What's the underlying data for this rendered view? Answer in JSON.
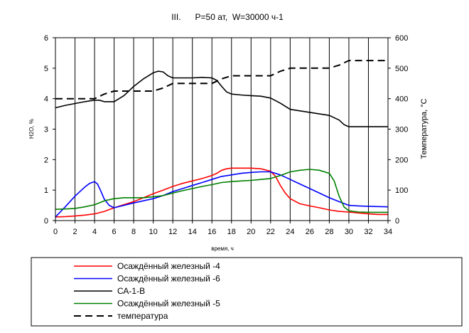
{
  "chart_data": {
    "type": "line",
    "title": "III.      P=50 ат,  W=30000 ч-1",
    "xlabel": "время, ч",
    "ylabel_left": "Н2О, %",
    "ylabel_right": "Температура, °С",
    "xlim": [
      0,
      34
    ],
    "xticks": [
      0,
      2,
      4,
      6,
      8,
      10,
      12,
      14,
      16,
      18,
      20,
      22,
      24,
      26,
      28,
      30,
      32,
      34
    ],
    "ylim_left": [
      0,
      6
    ],
    "yticks_left": [
      0,
      1,
      2,
      3,
      4,
      5,
      6
    ],
    "ylim_right": [
      0,
      600
    ],
    "yticks_right": [
      0,
      100,
      200,
      300,
      400,
      500,
      600
    ],
    "grid": "vertical",
    "legend_position": "bottom",
    "series": [
      {
        "name": "Осаждённый железный -4",
        "color": "#ff0000",
        "axis": "left",
        "dash": "solid",
        "x": [
          0,
          1,
          2,
          3,
          4,
          5,
          6,
          7,
          8,
          9,
          10,
          11,
          12,
          13,
          14,
          15,
          16,
          16.5,
          17,
          17.5,
          18,
          19,
          20,
          21,
          22,
          22.5,
          23,
          23.5,
          24,
          25,
          26,
          27,
          28,
          29,
          30,
          31,
          32,
          33,
          34
        ],
        "y": [
          0.12,
          0.13,
          0.15,
          0.18,
          0.22,
          0.3,
          0.42,
          0.52,
          0.62,
          0.75,
          0.88,
          1.0,
          1.12,
          1.22,
          1.3,
          1.38,
          1.48,
          1.55,
          1.65,
          1.7,
          1.72,
          1.72,
          1.72,
          1.7,
          1.62,
          1.45,
          1.15,
          0.9,
          0.72,
          0.55,
          0.48,
          0.42,
          0.35,
          0.3,
          0.28,
          0.25,
          0.22,
          0.2,
          0.2
        ]
      },
      {
        "name": "Осаждённый железный -6",
        "color": "#0000ff",
        "axis": "left",
        "dash": "solid",
        "x": [
          0,
          1,
          2,
          3,
          3.5,
          4,
          4.3,
          4.6,
          5,
          5.5,
          6,
          7,
          8,
          9,
          10,
          11,
          12,
          13,
          14,
          15,
          16,
          17,
          18,
          19,
          20,
          21,
          22,
          23,
          24,
          25,
          26,
          27,
          28,
          29,
          30,
          31,
          32,
          33,
          34
        ],
        "y": [
          0.12,
          0.45,
          0.8,
          1.1,
          1.22,
          1.28,
          1.2,
          1.0,
          0.7,
          0.5,
          0.42,
          0.5,
          0.58,
          0.65,
          0.72,
          0.82,
          0.95,
          1.05,
          1.15,
          1.25,
          1.35,
          1.45,
          1.5,
          1.55,
          1.58,
          1.6,
          1.6,
          1.5,
          1.35,
          1.2,
          1.05,
          0.9,
          0.75,
          0.62,
          0.5,
          0.48,
          0.47,
          0.46,
          0.45
        ]
      },
      {
        "name": "СА-1-В",
        "color": "#000000",
        "axis": "left",
        "dash": "solid",
        "x": [
          0,
          1,
          2,
          3,
          4,
          4.5,
          5,
          6,
          7,
          8,
          9,
          10,
          10.5,
          11,
          11.5,
          12,
          13,
          14,
          15,
          16,
          16.5,
          17,
          17.5,
          18,
          19,
          20,
          21,
          22,
          23,
          24,
          25,
          26,
          27,
          28,
          29,
          29.5,
          30,
          31,
          32,
          33,
          34
        ],
        "y": [
          3.7,
          3.78,
          3.84,
          3.9,
          3.95,
          3.95,
          3.9,
          3.9,
          4.1,
          4.4,
          4.65,
          4.85,
          4.9,
          4.88,
          4.75,
          4.68,
          4.68,
          4.68,
          4.7,
          4.68,
          4.6,
          4.4,
          4.22,
          4.15,
          4.12,
          4.1,
          4.08,
          4.02,
          3.85,
          3.65,
          3.6,
          3.55,
          3.5,
          3.45,
          3.3,
          3.15,
          3.08,
          3.08,
          3.08,
          3.08,
          3.08
        ]
      },
      {
        "name": "Осаждённый железный -5",
        "color": "#008000",
        "axis": "left",
        "dash": "solid",
        "x": [
          0,
          1,
          2,
          3,
          4,
          5,
          6,
          7,
          8,
          9,
          10,
          11,
          12,
          13,
          14,
          15,
          16,
          17,
          18,
          19,
          20,
          21,
          22,
          23,
          24,
          25,
          26,
          27,
          28,
          28.5,
          29,
          29.5,
          30,
          31,
          32,
          33,
          34
        ],
        "y": [
          0.37,
          0.38,
          0.4,
          0.45,
          0.52,
          0.65,
          0.72,
          0.75,
          0.75,
          0.75,
          0.78,
          0.82,
          0.9,
          0.98,
          1.05,
          1.12,
          1.18,
          1.25,
          1.28,
          1.3,
          1.32,
          1.35,
          1.38,
          1.48,
          1.6,
          1.65,
          1.68,
          1.65,
          1.55,
          1.3,
          0.8,
          0.45,
          0.32,
          0.28,
          0.27,
          0.27,
          0.27
        ]
      },
      {
        "name": "температура",
        "color": "#000000",
        "axis": "right",
        "dash": "dashed",
        "x": [
          0,
          2,
          3,
          4,
          5,
          6,
          7,
          8,
          9,
          10,
          11,
          12,
          13,
          14,
          15,
          16,
          17,
          18,
          19,
          20,
          21,
          22,
          23,
          24,
          25,
          26,
          27,
          28,
          29,
          30,
          31,
          32,
          33,
          34
        ],
        "y": [
          400,
          400,
          400,
          400,
          415,
          425,
          425,
          425,
          425,
          425,
          435,
          450,
          450,
          450,
          450,
          450,
          465,
          475,
          475,
          475,
          475,
          475,
          490,
          500,
          500,
          500,
          500,
          500,
          510,
          525,
          525,
          525,
          525,
          525
        ]
      }
    ]
  }
}
